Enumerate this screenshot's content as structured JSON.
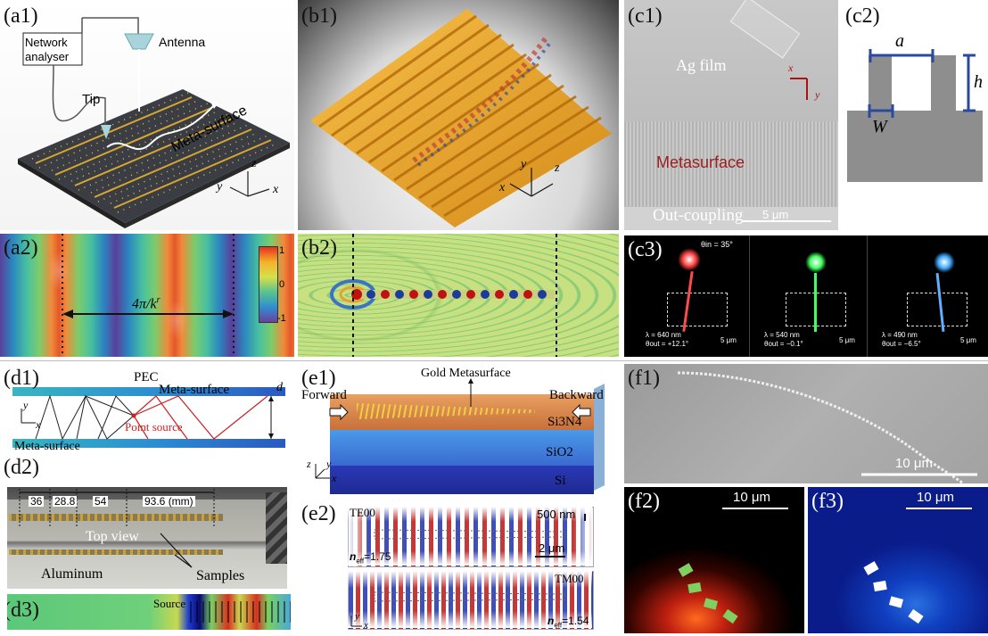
{
  "panels": {
    "a1": {
      "label": "(a1)",
      "network": "Network\nanalyser",
      "antenna": "Antenna",
      "tip": "Tip",
      "meta": "Meta-surface",
      "ax_z": "z",
      "ax_y": "y",
      "ax_x": "x"
    },
    "a2": {
      "label": "(a2)",
      "span": "4π/k",
      "span_sup": "r",
      "cb_max": "1",
      "cb_zero": "0",
      "cb_min": "-1"
    },
    "b1": {
      "label": "(b1)",
      "ax_y": "y",
      "ax_z": "z",
      "ax_x": "x"
    },
    "b2": {
      "label": "(b2)"
    },
    "c1": {
      "label": "(c1)",
      "ag": "Ag film",
      "meta": "Metasurface",
      "out": "Out-coupling",
      "scale": "5 μm",
      "ax_x": "x",
      "ax_y": "y"
    },
    "c2": {
      "label": "(c2)",
      "a": "a",
      "h": "h",
      "w": "W"
    },
    "c3": {
      "label": "(c3)",
      "theta_in": "θin = 35°",
      "subs": [
        {
          "lambda": "λ = 640 nm",
          "theta": "θout = +12.1°",
          "scale": "5 μm",
          "color": "#ff3030"
        },
        {
          "lambda": "λ = 540 nm",
          "theta": "θout = −0.1°",
          "scale": "5 μm",
          "color": "#30ff50"
        },
        {
          "lambda": "λ = 490 nm",
          "theta": "θout = −6.5°",
          "scale": "5 μm",
          "color": "#40a0ff"
        }
      ]
    },
    "d1": {
      "label": "(d1)",
      "pec": "PEC",
      "meta_top": "Meta-surface",
      "meta_bottom": "Meta-surface",
      "point": "Point source",
      "d": "d",
      "ax_y": "y",
      "ax_x": "x"
    },
    "d2": {
      "label": "(d2)",
      "dims": [
        "36",
        "28.8",
        "54",
        "93.6 (mm)"
      ],
      "top": "Top view",
      "aluminum": "Aluminum",
      "samples": "Samples"
    },
    "d3": {
      "label": "(d3)",
      "source": "Source"
    },
    "e1": {
      "label": "(e1)",
      "gold": "Gold Metasurface",
      "forward": "Forward",
      "backward": "Backward",
      "si3n4": "Si3N4",
      "sio2": "SiO2",
      "si": "Si",
      "ax_z": "z",
      "ax_y": "y",
      "ax_x": "x"
    },
    "e2": {
      "label": "(e2)",
      "te": "TE00",
      "tm": "TM00",
      "scale_top": "500 nm",
      "scale": "2 μm",
      "neff1": "=1.75",
      "neff2": "=1.54",
      "neff_sym": "n",
      "neff_sub": "eff",
      "ax_y": "y",
      "ax_x": "x"
    },
    "f1": {
      "label": "(f1)",
      "scale": "10 μm"
    },
    "f2": {
      "label": "(f2)",
      "scale": "10 μm"
    },
    "f3": {
      "label": "(f3)",
      "scale": "10 μm"
    }
  }
}
